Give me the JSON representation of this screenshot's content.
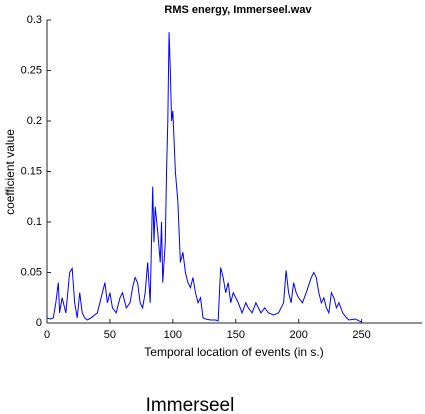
{
  "chart_data": {
    "type": "line",
    "title": "RMS energy, Immerseel.wav",
    "xlabel": "Temporal location of events (in s.)",
    "ylabel": "coefficient value",
    "color": "#0000ff",
    "x": [
      0,
      3,
      5,
      7,
      9,
      10,
      12,
      15,
      18,
      20,
      22,
      24,
      26,
      28,
      30,
      32,
      35,
      40,
      44,
      46,
      48,
      50,
      52,
      55,
      58,
      60,
      63,
      66,
      68,
      70,
      72,
      74,
      76,
      78,
      80,
      82,
      84,
      85,
      86,
      88,
      90,
      91,
      92,
      94,
      95,
      96,
      97,
      98,
      99,
      100,
      102,
      104,
      106,
      108,
      110,
      112,
      114,
      116,
      118,
      120,
      122,
      124,
      126,
      130,
      134,
      136,
      138,
      140,
      142,
      144,
      146,
      148,
      150,
      152,
      155,
      158,
      160,
      163,
      166,
      168,
      170,
      173,
      176,
      180,
      184,
      188,
      190,
      192,
      194,
      196,
      198,
      200,
      203,
      206,
      210,
      212,
      214,
      216,
      218,
      220,
      222,
      224,
      226,
      228,
      230,
      232,
      235,
      238,
      240,
      245,
      248,
      250
    ],
    "values": [
      0.005,
      0.004,
      0.005,
      0.02,
      0.04,
      0.01,
      0.025,
      0.01,
      0.05,
      0.054,
      0.02,
      0.005,
      0.03,
      0.01,
      0.005,
      0.003,
      0.005,
      0.01,
      0.03,
      0.04,
      0.02,
      0.03,
      0.015,
      0.01,
      0.025,
      0.03,
      0.015,
      0.02,
      0.035,
      0.045,
      0.04,
      0.02,
      0.015,
      0.03,
      0.06,
      0.02,
      0.135,
      0.08,
      0.115,
      0.09,
      0.06,
      0.1,
      0.04,
      0.08,
      0.15,
      0.2,
      0.288,
      0.25,
      0.2,
      0.21,
      0.15,
      0.12,
      0.06,
      0.07,
      0.05,
      0.04,
      0.035,
      0.045,
      0.03,
      0.02,
      0.025,
      0.005,
      0.004,
      0.003,
      0.003,
      0.002,
      0.055,
      0.045,
      0.03,
      0.04,
      0.02,
      0.03,
      0.025,
      0.02,
      0.01,
      0.02,
      0.015,
      0.01,
      0.02,
      0.015,
      0.01,
      0.015,
      0.01,
      0.008,
      0.01,
      0.02,
      0.052,
      0.03,
      0.02,
      0.04,
      0.03,
      0.025,
      0.02,
      0.03,
      0.045,
      0.05,
      0.045,
      0.03,
      0.02,
      0.025,
      0.015,
      0.01,
      0.03,
      0.025,
      0.015,
      0.02,
      0.01,
      0.005,
      0.003,
      0.004,
      0.002,
      0.001
    ],
    "xlim": [
      0,
      298
    ],
    "ylim": [
      0,
      0.3
    ],
    "xticks": [
      0,
      50,
      100,
      150,
      200,
      250
    ],
    "yticks": [
      0,
      0.05,
      0.1,
      0.15,
      0.2,
      0.25,
      0.3
    ]
  },
  "caption": "Immerseel"
}
